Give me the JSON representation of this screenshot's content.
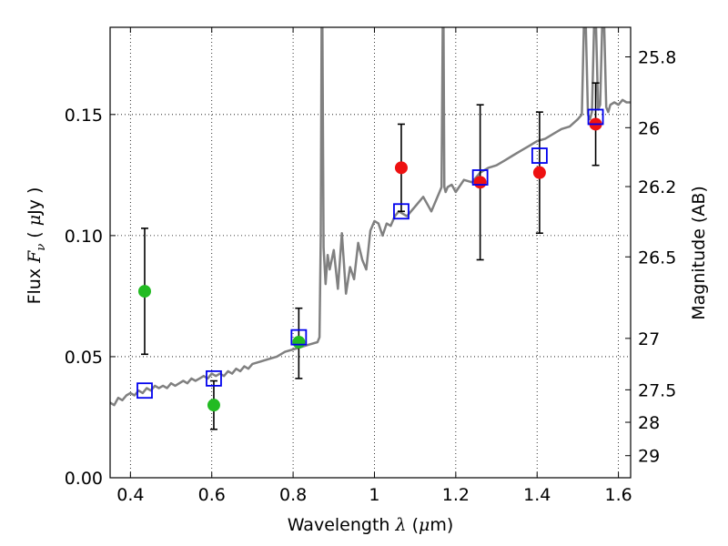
{
  "chart_data": {
    "type": "scatter",
    "xlabel": {
      "prefix": "Wavelength  ",
      "symbol": "λ",
      "unit_open": " (",
      "unit_mu": "μ",
      "unit_close": "m)"
    },
    "ylabel": {
      "prefix": "Flux  ",
      "symbol": "F",
      "subscript": "ν",
      "unit_open": "  ( ",
      "unit_mu": "μ",
      "unit_close": "Jy )"
    },
    "y2label": "Magnitude (AB)",
    "xlim": [
      0.35,
      1.63
    ],
    "ylim": [
      0.0,
      0.186
    ],
    "x_ticks": [
      {
        "value": 0.4,
        "label": "0.4"
      },
      {
        "value": 0.6,
        "label": "0.6"
      },
      {
        "value": 0.8,
        "label": "0.8"
      },
      {
        "value": 1.0,
        "label": "1"
      },
      {
        "value": 1.2,
        "label": "1.2"
      },
      {
        "value": 1.4,
        "label": "1.4"
      },
      {
        "value": 1.6,
        "label": "1.6"
      }
    ],
    "y_ticks": [
      {
        "value": 0.0,
        "label": "0.00"
      },
      {
        "value": 0.05,
        "label": "0.05"
      },
      {
        "value": 0.1,
        "label": "0.10"
      },
      {
        "value": 0.15,
        "label": "0.15"
      }
    ],
    "y2_ticks": [
      {
        "value": 25.8,
        "label": "25.8"
      },
      {
        "value": 26.0,
        "label": "26"
      },
      {
        "value": 26.2,
        "label": "26.2"
      },
      {
        "value": 26.5,
        "label": "26.5"
      },
      {
        "value": 27.0,
        "label": "27"
      },
      {
        "value": 27.5,
        "label": "27.5"
      },
      {
        "value": 28.0,
        "label": "28"
      },
      {
        "value": 29.0,
        "label": "29"
      }
    ],
    "grid": true,
    "colors": {
      "model": "#808080",
      "optical": "#22bb22",
      "infrared": "#ee1111",
      "model_flux": "#0000ee",
      "errorbar": "#000000"
    },
    "model_spectrum": {
      "x": [
        0.35,
        0.36,
        0.37,
        0.38,
        0.39,
        0.4,
        0.41,
        0.42,
        0.43,
        0.44,
        0.45,
        0.46,
        0.47,
        0.48,
        0.49,
        0.5,
        0.51,
        0.52,
        0.53,
        0.54,
        0.55,
        0.56,
        0.57,
        0.58,
        0.59,
        0.6,
        0.61,
        0.62,
        0.63,
        0.64,
        0.65,
        0.66,
        0.67,
        0.68,
        0.69,
        0.7,
        0.72,
        0.74,
        0.76,
        0.78,
        0.8,
        0.82,
        0.84,
        0.86,
        0.865,
        0.868,
        0.87,
        0.872,
        0.875,
        0.88,
        0.885,
        0.89,
        0.9,
        0.91,
        0.92,
        0.93,
        0.94,
        0.95,
        0.96,
        0.97,
        0.98,
        0.99,
        1.0,
        1.01,
        1.02,
        1.03,
        1.04,
        1.05,
        1.06,
        1.08,
        1.1,
        1.12,
        1.14,
        1.16,
        1.165,
        1.168,
        1.17,
        1.172,
        1.175,
        1.18,
        1.19,
        1.2,
        1.22,
        1.24,
        1.26,
        1.28,
        1.3,
        1.32,
        1.34,
        1.36,
        1.38,
        1.4,
        1.42,
        1.44,
        1.46,
        1.48,
        1.5,
        1.51,
        1.515,
        1.52,
        1.525,
        1.53,
        1.535,
        1.54,
        1.545,
        1.55,
        1.555,
        1.56,
        1.565,
        1.57,
        1.575,
        1.58,
        1.59,
        1.6,
        1.61,
        1.62,
        1.63
      ],
      "y": [
        0.031,
        0.03,
        0.033,
        0.032,
        0.034,
        0.035,
        0.034,
        0.036,
        0.035,
        0.037,
        0.036,
        0.038,
        0.037,
        0.038,
        0.037,
        0.039,
        0.038,
        0.039,
        0.04,
        0.039,
        0.041,
        0.04,
        0.041,
        0.042,
        0.041,
        0.043,
        0.042,
        0.043,
        0.042,
        0.044,
        0.043,
        0.045,
        0.044,
        0.046,
        0.045,
        0.047,
        0.048,
        0.049,
        0.05,
        0.052,
        0.053,
        0.054,
        0.055,
        0.056,
        0.058,
        0.1,
        0.186,
        0.186,
        0.095,
        0.08,
        0.092,
        0.086,
        0.094,
        0.078,
        0.101,
        0.076,
        0.087,
        0.082,
        0.097,
        0.09,
        0.086,
        0.102,
        0.106,
        0.105,
        0.1,
        0.105,
        0.104,
        0.108,
        0.11,
        0.108,
        0.112,
        0.116,
        0.11,
        0.118,
        0.12,
        0.186,
        0.186,
        0.12,
        0.118,
        0.12,
        0.121,
        0.118,
        0.123,
        0.122,
        0.126,
        0.128,
        0.129,
        0.131,
        0.133,
        0.135,
        0.137,
        0.139,
        0.14,
        0.142,
        0.144,
        0.145,
        0.148,
        0.15,
        0.186,
        0.186,
        0.15,
        0.148,
        0.151,
        0.186,
        0.186,
        0.152,
        0.154,
        0.186,
        0.186,
        0.153,
        0.151,
        0.154,
        0.155,
        0.154,
        0.156,
        0.155,
        0.155
      ]
    },
    "series": [
      {
        "marker": "circle-green",
        "x": [
          0.435,
          0.605,
          0.814
        ],
        "y": [
          0.077,
          0.03,
          0.056
        ],
        "yerr_low": [
          0.051,
          0.02,
          0.041
        ],
        "yerr_high": [
          0.103,
          0.04,
          0.07
        ]
      },
      {
        "marker": "circle-red",
        "x": [
          1.066,
          1.26,
          1.406,
          1.544
        ],
        "y": [
          0.128,
          0.122,
          0.126,
          0.146
        ],
        "yerr_low": [
          0.11,
          0.09,
          0.101,
          0.129
        ],
        "yerr_high": [
          0.146,
          0.154,
          0.151,
          0.163
        ]
      },
      {
        "marker": "square-blue",
        "x": [
          0.435,
          0.605,
          0.814,
          1.066,
          1.26,
          1.406,
          1.544
        ],
        "y": [
          0.036,
          0.041,
          0.058,
          0.11,
          0.124,
          0.133,
          0.149
        ]
      }
    ]
  }
}
